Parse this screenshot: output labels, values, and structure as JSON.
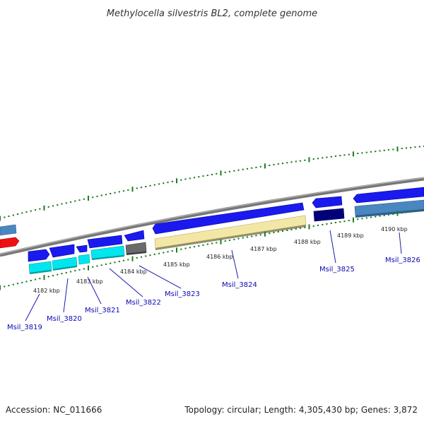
{
  "title": "Methylocella silvestris BL2, complete genome",
  "footer": {
    "accession": "Accession: NC_011666",
    "summary": "Topology: circular; Length: 4,305,430 bp; Genes: 3,872"
  },
  "colors": {
    "background": "#ffffff",
    "backbone": "#8a8a8a",
    "tick": "#1f7a1f",
    "label": "#0a0ab0",
    "gene_blue": "#1a1aee",
    "gene_cyan": "#00e6ee",
    "gene_navy": "#00007a",
    "gene_steel": "#4a86c0",
    "gene_gray": "#6a6a6a",
    "gene_khaki": "#f3e7a6",
    "gene_red": "#ee1111"
  },
  "scale": {
    "unit": "kbp",
    "labels": [
      "4182 kbp",
      "4183 kbp",
      "4184 kbp",
      "4185 kbp",
      "4186 kbp",
      "4187 kbp",
      "4188 kbp",
      "4189 kbp",
      "4190 kbp"
    ]
  },
  "genes": [
    {
      "label": "Msil_3819"
    },
    {
      "label": "Msil_3820"
    },
    {
      "label": "Msil_3821"
    },
    {
      "label": "Msil_3822"
    },
    {
      "label": "Msil_3823"
    },
    {
      "label": "Msil_3824"
    },
    {
      "label": "Msil_3825"
    },
    {
      "label": "Msil_3826"
    }
  ]
}
